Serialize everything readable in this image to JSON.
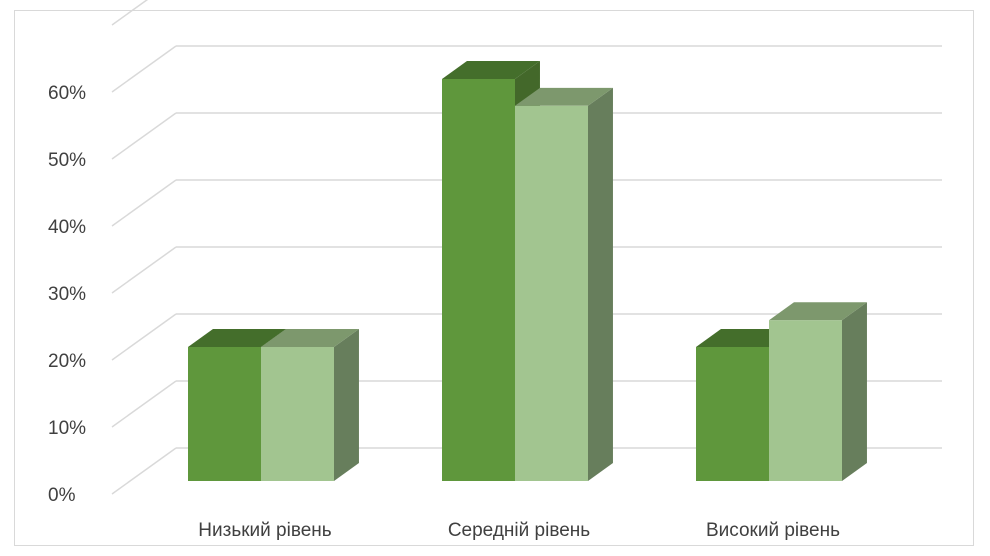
{
  "chart_data": {
    "type": "bar",
    "style": "3d-clustered-column",
    "categories": [
      "Низький рівень",
      "Середній рівень",
      "Високий рівень"
    ],
    "series": [
      {
        "values": [
          20,
          60,
          20
        ],
        "color": "#5f973c",
        "side_color": "#43682a",
        "top_color": "#446e2b"
      },
      {
        "values": [
          20,
          56,
          24
        ],
        "color": "#a2c590",
        "side_color": "#677e5c",
        "top_color": "#7d986d"
      }
    ],
    "y_ticks": [
      "0%",
      "10%",
      "20%",
      "30%",
      "40%",
      "50%",
      "60%"
    ],
    "ylim": [
      0,
      60
    ],
    "grid": true,
    "legend": "none"
  }
}
